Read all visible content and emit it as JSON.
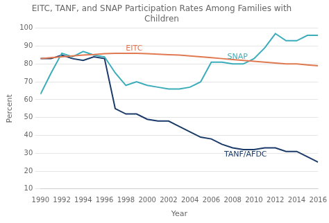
{
  "chart_data": {
    "type": "line",
    "title": "EITC, TANF, and SNAP Participation Rates Among Families with\nChildren",
    "x_label": "Year",
    "y_label": "Percent",
    "x": [
      1990,
      1991,
      1992,
      1993,
      1994,
      1995,
      1996,
      1997,
      1998,
      1999,
      2000,
      2001,
      2002,
      2003,
      2004,
      2005,
      2006,
      2007,
      2008,
      2009,
      2010,
      2011,
      2012,
      2013,
      2014,
      2015,
      2016
    ],
    "series": [
      {
        "color": "#E07850",
        "values": [
          83,
          83.5,
          84,
          84.5,
          85,
          85.3,
          85.8,
          86,
          86,
          86,
          85.8,
          85.5,
          85.2,
          85,
          84.5,
          84,
          83.5,
          83,
          82.5,
          82,
          81.5,
          81,
          80.5,
          80,
          80,
          79.5,
          79
        ]
      },
      {
        "color": "#3AACBA",
        "values": [
          63,
          75,
          86,
          84,
          87,
          85,
          84,
          75,
          68,
          70,
          68,
          67,
          66,
          66,
          67,
          70,
          81,
          81,
          80,
          80,
          83,
          89,
          97,
          93,
          93,
          96,
          96
        ]
      },
      {
        "color": "#1A3A6A",
        "values": [
          83,
          83,
          85,
          83,
          82,
          84,
          83,
          55,
          52,
          52,
          49,
          48,
          48,
          45,
          42,
          39,
          38,
          35,
          33,
          32,
          32,
          33,
          33,
          31,
          31,
          28,
          25
        ]
      }
    ],
    "annotations": [
      {
        "text": "EITC",
        "x": 1998,
        "y": 87.5,
        "color": "#E07850"
      },
      {
        "text": "SNAP",
        "x": 2007.5,
        "y": 83,
        "color": "#3AACBA"
      },
      {
        "text": "TANF/AFDC",
        "x": 2007.2,
        "y": 28,
        "color": "#1A3A6A"
      }
    ],
    "xlim": [
      1990,
      2016
    ],
    "xticks": [
      1990,
      1992,
      1994,
      1996,
      1998,
      2000,
      2002,
      2004,
      2006,
      2008,
      2010,
      2012,
      2014,
      2016
    ],
    "ylim": [
      10,
      100
    ],
    "yticks": [
      10,
      20,
      30,
      40,
      50,
      60,
      70,
      80,
      90,
      100
    ],
    "grid": "y"
  }
}
